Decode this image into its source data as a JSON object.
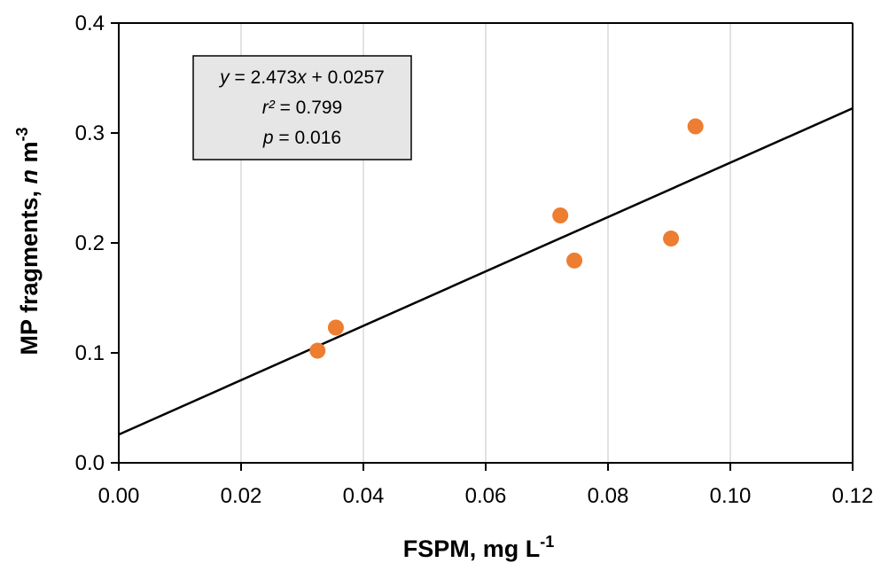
{
  "chart_data": {
    "type": "scatter",
    "xlabel": {
      "main": "FSPM, mg L",
      "sup": "-1"
    },
    "ylabel": {
      "main": "MP fragments, ",
      "italic": "n",
      "unit": " m",
      "sup": "-3"
    },
    "xlim": [
      0,
      0.12
    ],
    "ylim": [
      0,
      0.4
    ],
    "x_ticks": [
      "0.00",
      "0.02",
      "0.04",
      "0.06",
      "0.08",
      "0.10",
      "0.12"
    ],
    "y_ticks": [
      "0.0",
      "0.1",
      "0.2",
      "0.3",
      "0.4"
    ],
    "x_tick_values": [
      0,
      0.02,
      0.04,
      0.06,
      0.08,
      0.1,
      0.12
    ],
    "y_tick_values": [
      0,
      0.1,
      0.2,
      0.3,
      0.4
    ],
    "points": [
      {
        "x": 0.0325,
        "y": 0.102
      },
      {
        "x": 0.0355,
        "y": 0.123
      },
      {
        "x": 0.0722,
        "y": 0.225
      },
      {
        "x": 0.0745,
        "y": 0.184
      },
      {
        "x": 0.0903,
        "y": 0.204
      },
      {
        "x": 0.0943,
        "y": 0.306
      }
    ],
    "fit": {
      "slope": 2.473,
      "intercept": 0.0257
    },
    "annotation": {
      "eq_var": "y",
      "eq_rest": " = 2.473",
      "eq_xvar": "x",
      "eq_tail": " + 0.0257",
      "r_var": "r²",
      "r_rest": " = 0.799",
      "p_var": "p",
      "p_rest": " = 0.016"
    },
    "grid": "vertical",
    "colors": {
      "points": "#ED7D31",
      "line": "#000000",
      "box_fill": "#E6E6E6",
      "grid": "#D9D9D9"
    }
  }
}
